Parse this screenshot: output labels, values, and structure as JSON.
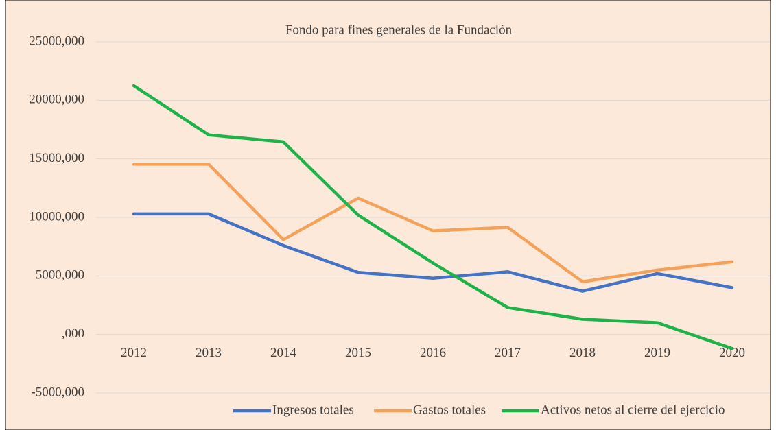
{
  "chart_data": {
    "type": "line",
    "title": "Fondo para fines generales de la Fundación",
    "categories": [
      "2012",
      "2013",
      "2014",
      "2015",
      "2016",
      "2017",
      "2018",
      "2019",
      "2020"
    ],
    "series": [
      {
        "name": "Ingresos totales",
        "color": "#4472c4",
        "values": [
          10300,
          10300,
          7600,
          5300,
          4800,
          5350,
          3700,
          5200,
          4000
        ]
      },
      {
        "name": "Gastos totales",
        "color": "#f4a259",
        "values": [
          14550,
          14550,
          8100,
          11650,
          8850,
          9150,
          4500,
          5500,
          6200
        ]
      },
      {
        "name": "Activos netos al cierre del ejercicio",
        "color": "#1db34a",
        "values": [
          21250,
          17050,
          16450,
          10200,
          6100,
          2300,
          1300,
          1000,
          -1200
        ]
      }
    ],
    "ylim": [
      -5000,
      25000
    ],
    "yticks": [
      {
        "value": -5000,
        "label": "-5000,000"
      },
      {
        "value": 0,
        "label": ",000"
      },
      {
        "value": 5000,
        "label": "5000,000"
      },
      {
        "value": 10000,
        "label": "10000,000"
      },
      {
        "value": 15000,
        "label": "15000,000"
      },
      {
        "value": 20000,
        "label": "20000,000"
      },
      {
        "value": 25000,
        "label": "25000,000"
      }
    ],
    "grid": true,
    "legend": "bottom-right"
  }
}
